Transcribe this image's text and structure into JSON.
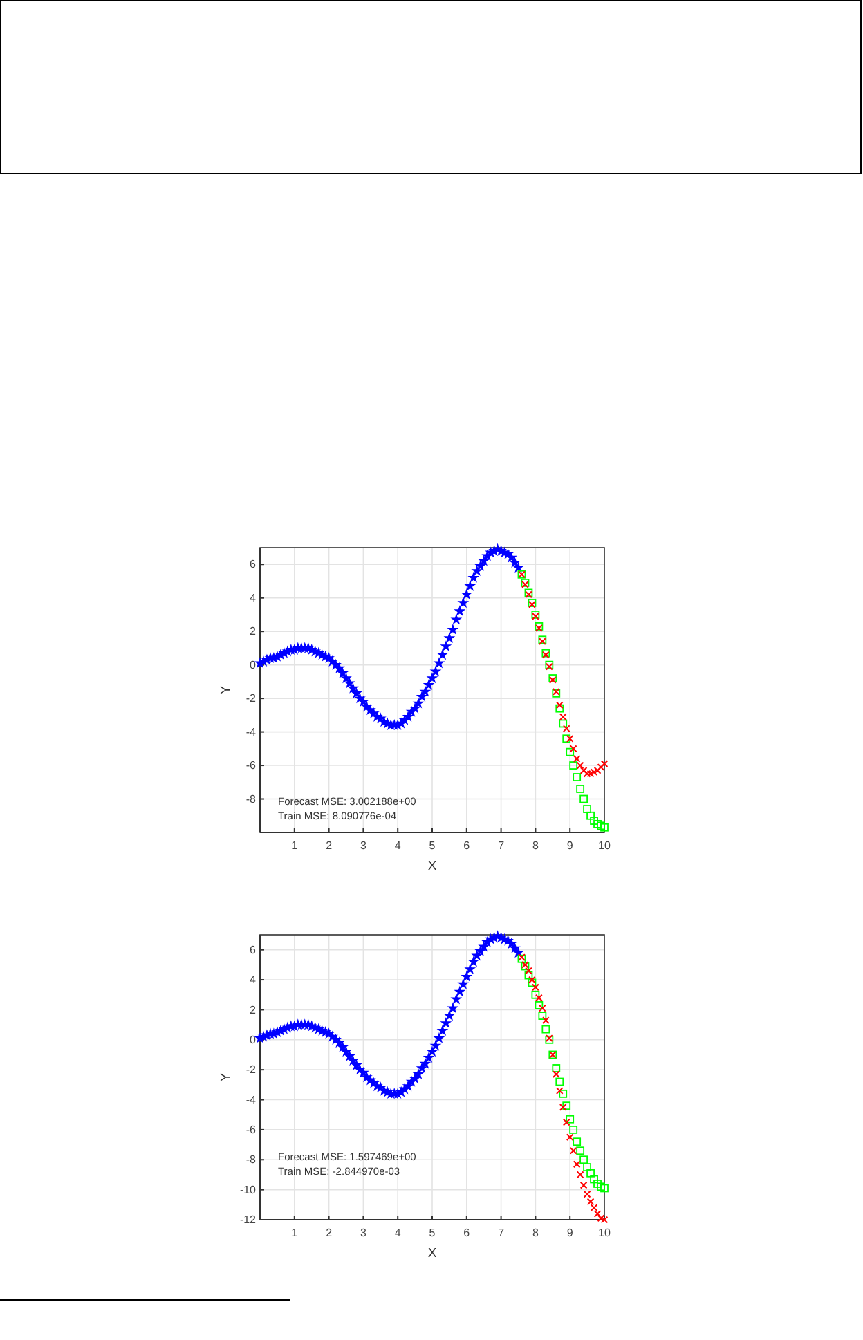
{
  "chart_data": [
    {
      "type": "scatter",
      "xlabel": "X",
      "ylabel": "Y",
      "xlim": [
        0,
        10
      ],
      "ylim": [
        -10,
        7
      ],
      "xticks": [
        1,
        2,
        3,
        4,
        5,
        6,
        7,
        8,
        9,
        10
      ],
      "yticks": [
        -8,
        -6,
        -4,
        -2,
        0,
        2,
        4,
        6
      ],
      "grid": true,
      "annotations": [
        "Forecast MSE: 3.002188e+00",
        "Train MSE: 8.090776e-04"
      ],
      "series": [
        {
          "color": "#0000ff",
          "marker": "star",
          "x": [
            0,
            0.1,
            0.2,
            0.3,
            0.4,
            0.5,
            0.6,
            0.7,
            0.8,
            0.9,
            1.0,
            1.1,
            1.2,
            1.3,
            1.4,
            1.5,
            1.6,
            1.7,
            1.8,
            1.9,
            2.0,
            2.1,
            2.2,
            2.3,
            2.4,
            2.5,
            2.6,
            2.7,
            2.8,
            2.9,
            3.0,
            3.1,
            3.2,
            3.3,
            3.4,
            3.5,
            3.6,
            3.7,
            3.8,
            3.9,
            4.0,
            4.1,
            4.2,
            4.3,
            4.4,
            4.5,
            4.6,
            4.7,
            4.8,
            4.9,
            5.0,
            5.1,
            5.2,
            5.3,
            5.4,
            5.5,
            5.6,
            5.7,
            5.8,
            5.9,
            6.0,
            6.1,
            6.2,
            6.3,
            6.4,
            6.5,
            6.6,
            6.7,
            6.8,
            6.9,
            7.0,
            7.1,
            7.2,
            7.3,
            7.4,
            7.5
          ],
          "values": [
            0.1,
            0.2,
            0.3,
            0.4,
            0.4,
            0.5,
            0.6,
            0.7,
            0.8,
            0.9,
            0.9,
            1.0,
            1.0,
            1.0,
            1.0,
            0.9,
            0.8,
            0.7,
            0.6,
            0.5,
            0.4,
            0.2,
            0.0,
            -0.2,
            -0.5,
            -0.8,
            -1.1,
            -1.4,
            -1.7,
            -2.0,
            -2.2,
            -2.5,
            -2.7,
            -2.9,
            -3.1,
            -3.2,
            -3.4,
            -3.5,
            -3.6,
            -3.6,
            -3.6,
            -3.5,
            -3.3,
            -3.1,
            -2.8,
            -2.6,
            -2.3,
            -1.9,
            -1.6,
            -1.2,
            -0.8,
            -0.4,
            0.1,
            0.6,
            1.1,
            1.6,
            2.1,
            2.7,
            3.2,
            3.7,
            4.2,
            4.7,
            5.2,
            5.6,
            5.9,
            6.2,
            6.5,
            6.7,
            6.8,
            6.9,
            6.8,
            6.7,
            6.6,
            6.4,
            6.1,
            5.8
          ]
        },
        {
          "color": "#00ff00",
          "marker": "square",
          "x": [
            7.6,
            7.7,
            7.8,
            7.9,
            8.0,
            8.1,
            8.2,
            8.3,
            8.4,
            8.5,
            8.6,
            8.7,
            8.8,
            8.9,
            9.0,
            9.1,
            9.2,
            9.3,
            9.4,
            9.5,
            9.6,
            9.7,
            9.8,
            9.9,
            10
          ],
          "values": [
            5.4,
            4.9,
            4.3,
            3.7,
            3.0,
            2.3,
            1.5,
            0.7,
            0.0,
            -0.8,
            -1.7,
            -2.6,
            -3.5,
            -4.4,
            -5.2,
            -6.0,
            -6.7,
            -7.4,
            -8.0,
            -8.6,
            -9.0,
            -9.3,
            -9.5,
            -9.6,
            -9.7
          ]
        },
        {
          "color": "#ff0000",
          "marker": "cross",
          "x": [
            7.6,
            7.7,
            7.8,
            7.9,
            8.0,
            8.1,
            8.2,
            8.3,
            8.4,
            8.5,
            8.6,
            8.7,
            8.8,
            8.9,
            9.0,
            9.1,
            9.2,
            9.3,
            9.4,
            9.5,
            9.6,
            9.7,
            9.8,
            9.9,
            10
          ],
          "values": [
            5.4,
            4.8,
            4.2,
            3.6,
            2.9,
            2.2,
            1.4,
            0.6,
            -0.1,
            -0.9,
            -1.6,
            -2.4,
            -3.1,
            -3.8,
            -4.4,
            -5.0,
            -5.6,
            -6.0,
            -6.3,
            -6.5,
            -6.5,
            -6.4,
            -6.3,
            -6.1,
            -5.9
          ]
        }
      ]
    },
    {
      "type": "scatter",
      "xlabel": "X",
      "ylabel": "Y",
      "xlim": [
        0,
        10
      ],
      "ylim": [
        -12,
        7
      ],
      "xticks": [
        1,
        2,
        3,
        4,
        5,
        6,
        7,
        8,
        9,
        10
      ],
      "yticks": [
        -12,
        -10,
        -8,
        -6,
        -4,
        -2,
        0,
        2,
        4,
        6
      ],
      "grid": true,
      "annotations": [
        "Forecast MSE: 1.597469e+00",
        "Train MSE: -2.844970e-03"
      ],
      "series": [
        {
          "color": "#0000ff",
          "marker": "star",
          "x": [
            0,
            0.1,
            0.2,
            0.3,
            0.4,
            0.5,
            0.6,
            0.7,
            0.8,
            0.9,
            1.0,
            1.1,
            1.2,
            1.3,
            1.4,
            1.5,
            1.6,
            1.7,
            1.8,
            1.9,
            2.0,
            2.1,
            2.2,
            2.3,
            2.4,
            2.5,
            2.6,
            2.7,
            2.8,
            2.9,
            3.0,
            3.1,
            3.2,
            3.3,
            3.4,
            3.5,
            3.6,
            3.7,
            3.8,
            3.9,
            4.0,
            4.1,
            4.2,
            4.3,
            4.4,
            4.5,
            4.6,
            4.7,
            4.8,
            4.9,
            5.0,
            5.1,
            5.2,
            5.3,
            5.4,
            5.5,
            5.6,
            5.7,
            5.8,
            5.9,
            6.0,
            6.1,
            6.2,
            6.3,
            6.4,
            6.5,
            6.6,
            6.7,
            6.8,
            6.9,
            7.0,
            7.1,
            7.2,
            7.3,
            7.4,
            7.5
          ],
          "values": [
            0.1,
            0.2,
            0.3,
            0.4,
            0.4,
            0.5,
            0.6,
            0.7,
            0.8,
            0.9,
            0.9,
            1.0,
            1.0,
            1.0,
            1.0,
            0.9,
            0.8,
            0.7,
            0.6,
            0.5,
            0.4,
            0.2,
            0.0,
            -0.2,
            -0.5,
            -0.8,
            -1.1,
            -1.4,
            -1.7,
            -2.0,
            -2.2,
            -2.5,
            -2.7,
            -2.9,
            -3.1,
            -3.2,
            -3.4,
            -3.5,
            -3.6,
            -3.6,
            -3.6,
            -3.5,
            -3.3,
            -3.1,
            -2.8,
            -2.6,
            -2.3,
            -1.9,
            -1.6,
            -1.2,
            -0.8,
            -0.4,
            0.1,
            0.6,
            1.1,
            1.6,
            2.1,
            2.7,
            3.2,
            3.7,
            4.2,
            4.7,
            5.2,
            5.6,
            5.9,
            6.2,
            6.5,
            6.7,
            6.8,
            6.9,
            6.8,
            6.7,
            6.6,
            6.4,
            6.1,
            5.8
          ]
        },
        {
          "color": "#00ff00",
          "marker": "square",
          "x": [
            7.6,
            7.7,
            7.8,
            7.9,
            8.0,
            8.1,
            8.2,
            8.3,
            8.4,
            8.5,
            8.6,
            8.7,
            8.8,
            8.9,
            9.0,
            9.1,
            9.2,
            9.3,
            9.4,
            9.5,
            9.6,
            9.7,
            9.8,
            9.9,
            10
          ],
          "values": [
            5.4,
            4.9,
            4.3,
            3.8,
            3.0,
            2.3,
            1.6,
            0.7,
            0.0,
            -1.0,
            -1.9,
            -2.8,
            -3.6,
            -4.4,
            -5.3,
            -6.0,
            -6.8,
            -7.4,
            -8.0,
            -8.5,
            -8.9,
            -9.3,
            -9.6,
            -9.8,
            -9.9
          ]
        },
        {
          "color": "#ff0000",
          "marker": "cross",
          "x": [
            7.6,
            7.7,
            7.8,
            7.9,
            8.0,
            8.1,
            8.2,
            8.3,
            8.4,
            8.5,
            8.6,
            8.7,
            8.8,
            8.9,
            9.0,
            9.1,
            9.2,
            9.3,
            9.4,
            9.5,
            9.6,
            9.7,
            9.8,
            9.9,
            10
          ],
          "values": [
            5.5,
            5.0,
            4.6,
            4.0,
            3.5,
            2.8,
            2.1,
            1.3,
            0.1,
            -1.0,
            -2.3,
            -3.4,
            -4.5,
            -5.5,
            -6.5,
            -7.4,
            -8.3,
            -9.0,
            -9.7,
            -10.3,
            -10.8,
            -11.2,
            -11.6,
            -11.9,
            -12.0
          ]
        }
      ]
    }
  ]
}
